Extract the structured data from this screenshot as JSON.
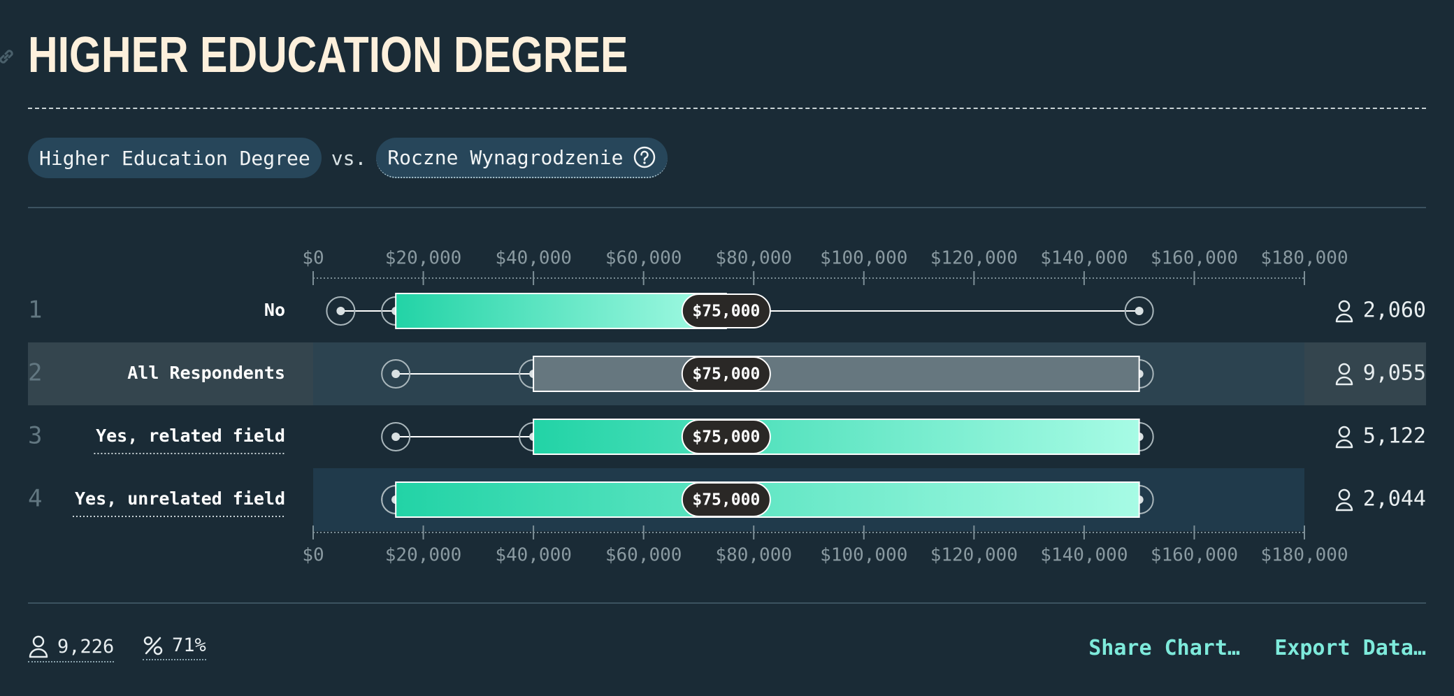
{
  "header": {
    "title": "HIGHER EDUCATION DEGREE"
  },
  "selectors": {
    "primary": "Higher Education Degree",
    "vs": "vs.",
    "secondary": "Roczne Wynagrodzenie"
  },
  "chart_data": {
    "type": "box",
    "x_ticks": [
      "$0",
      "$20,000",
      "$40,000",
      "$60,000",
      "$80,000",
      "$100,000",
      "$120,000",
      "$140,000",
      "$160,000",
      "$180,000"
    ],
    "xlim": [
      0,
      180000
    ],
    "grid": false,
    "rows": [
      {
        "rank": "1",
        "label": "No",
        "whisker_low": 5000,
        "q1": 15000,
        "median": 75000,
        "q3": 75000,
        "whisker_high": 150000,
        "median_label": "$75,000",
        "count": "2,060",
        "style": "teal",
        "underlined": false
      },
      {
        "rank": "2",
        "label": "All Respondents",
        "whisker_low": 15000,
        "q1": 40000,
        "median": 75000,
        "q3": 150000,
        "whisker_high": 150000,
        "median_label": "$75,000",
        "count": "9,055",
        "style": "gray",
        "underlined": false
      },
      {
        "rank": "3",
        "label": "Yes, related field",
        "whisker_low": 15000,
        "q1": 40000,
        "median": 75000,
        "q3": 150000,
        "whisker_high": 150000,
        "median_label": "$75,000",
        "count": "5,122",
        "style": "teal",
        "underlined": true
      },
      {
        "rank": "4",
        "label": "Yes, unrelated field",
        "whisker_low": 15000,
        "q1": 15000,
        "median": 75000,
        "q3": 150000,
        "whisker_high": 150000,
        "median_label": "$75,000",
        "count": "2,044",
        "style": "teal",
        "underlined": true
      }
    ]
  },
  "footer": {
    "respondents": "9,226",
    "percent": "71%",
    "share_label": "Share Chart…",
    "export_label": "Export Data…"
  },
  "colors": {
    "background": "#1a2b36",
    "accent": "#7eeadb",
    "box_start": "#22d3a6",
    "box_end": "#a7fbe5",
    "all_box": "#66777f"
  },
  "icons": [
    "link-icon",
    "help-circle-icon",
    "person-icon",
    "percent-icon"
  ]
}
